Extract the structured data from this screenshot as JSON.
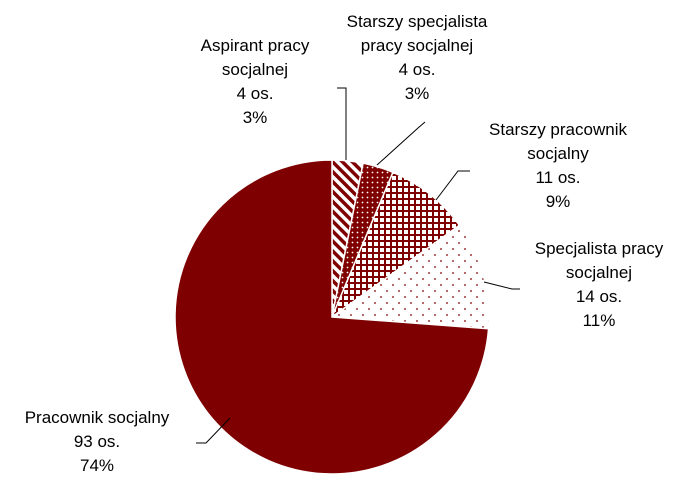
{
  "chart_data": {
    "type": "pie",
    "title": "",
    "slices": [
      {
        "name": "Aspirant pracy socjalnej",
        "count": "4 os.",
        "percent": "3%",
        "value": 4,
        "pattern": "diagonal-stripes"
      },
      {
        "name": "Starszy specjalista pracy socjalnej",
        "count": "4 os.",
        "percent": "3%",
        "value": 4,
        "pattern": "dots-dark"
      },
      {
        "name": "Starszy pracownik socjalny",
        "count": "11 os.",
        "percent": "9%",
        "value": 11,
        "pattern": "grid"
      },
      {
        "name": "Specjalista pracy socjalnej",
        "count": "14 os.",
        "percent": "11%",
        "value": 14,
        "pattern": "sparse-dots"
      },
      {
        "name": "Pracownik socjalny",
        "count": "93 os.",
        "percent": "74%",
        "value": 93,
        "pattern": "solid"
      }
    ],
    "start_angle": "12 o'clock",
    "direction": "clockwise",
    "color": "#7f0000",
    "legend": "none"
  },
  "labels": {
    "aspirant": [
      "Aspirant pracy",
      "socjalnej",
      "4 os.",
      "3%"
    ],
    "starszy_specjalista": [
      "Starszy specjalista",
      "pracy socjalnej",
      "4 os.",
      "3%"
    ],
    "starszy_pracownik": [
      "Starszy pracownik",
      "socjalny",
      "11 os.",
      "9%"
    ],
    "specjalista": [
      "Specjalista pracy",
      "socjalnej",
      "14 os.",
      "11%"
    ],
    "pracownik": [
      "Pracownik socjalny",
      "93 os.",
      "74%"
    ]
  }
}
